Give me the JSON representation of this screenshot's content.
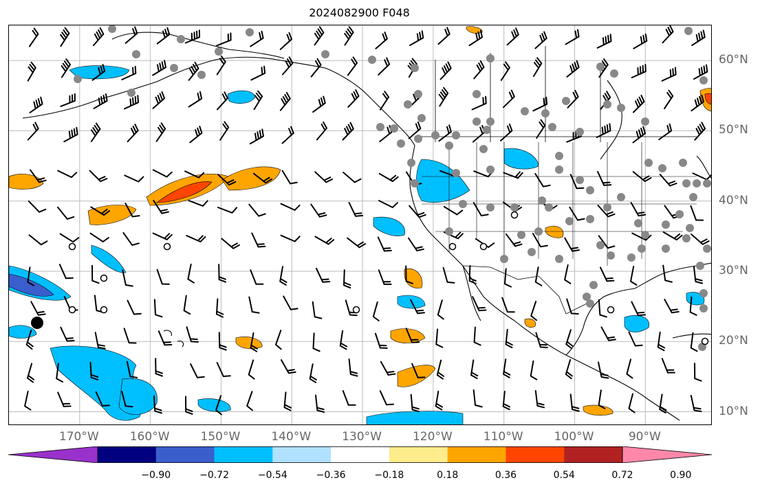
{
  "title": "2024082900 F048",
  "map": {
    "lon_min": -180,
    "lon_max": -80.5,
    "lat_min": 8,
    "lat_max": 65,
    "lon_gridlines": [
      -170,
      -160,
      -150,
      -140,
      -130,
      -120,
      -110,
      -100,
      -90
    ],
    "lat_gridlines": [
      10,
      20,
      30,
      40,
      50,
      60
    ],
    "lon_labels": [
      "170°W",
      "160°W",
      "150°W",
      "140°W",
      "130°W",
      "120°W",
      "110°W",
      "100°W",
      "90°W"
    ],
    "lat_labels": [
      "10°N",
      "20°N",
      "30°N",
      "40°N",
      "50°N",
      "60°N"
    ],
    "label_color": "#666666",
    "grid_color": "#bbbbbb"
  },
  "colorbar": {
    "colors": [
      "#9932cc",
      "#000080",
      "#3a5fcd",
      "#00bfff",
      "#b0e2ff",
      "#ffffff",
      "#ffec8b",
      "#ffa500",
      "#ff4500",
      "#b22222",
      "#ff88aa"
    ],
    "tick_labels": [
      "−0.90",
      "−0.72",
      "−0.54",
      "−0.36",
      "−0.18",
      "0.18",
      "0.36",
      "0.54",
      "0.72",
      "0.90"
    ]
  }
}
